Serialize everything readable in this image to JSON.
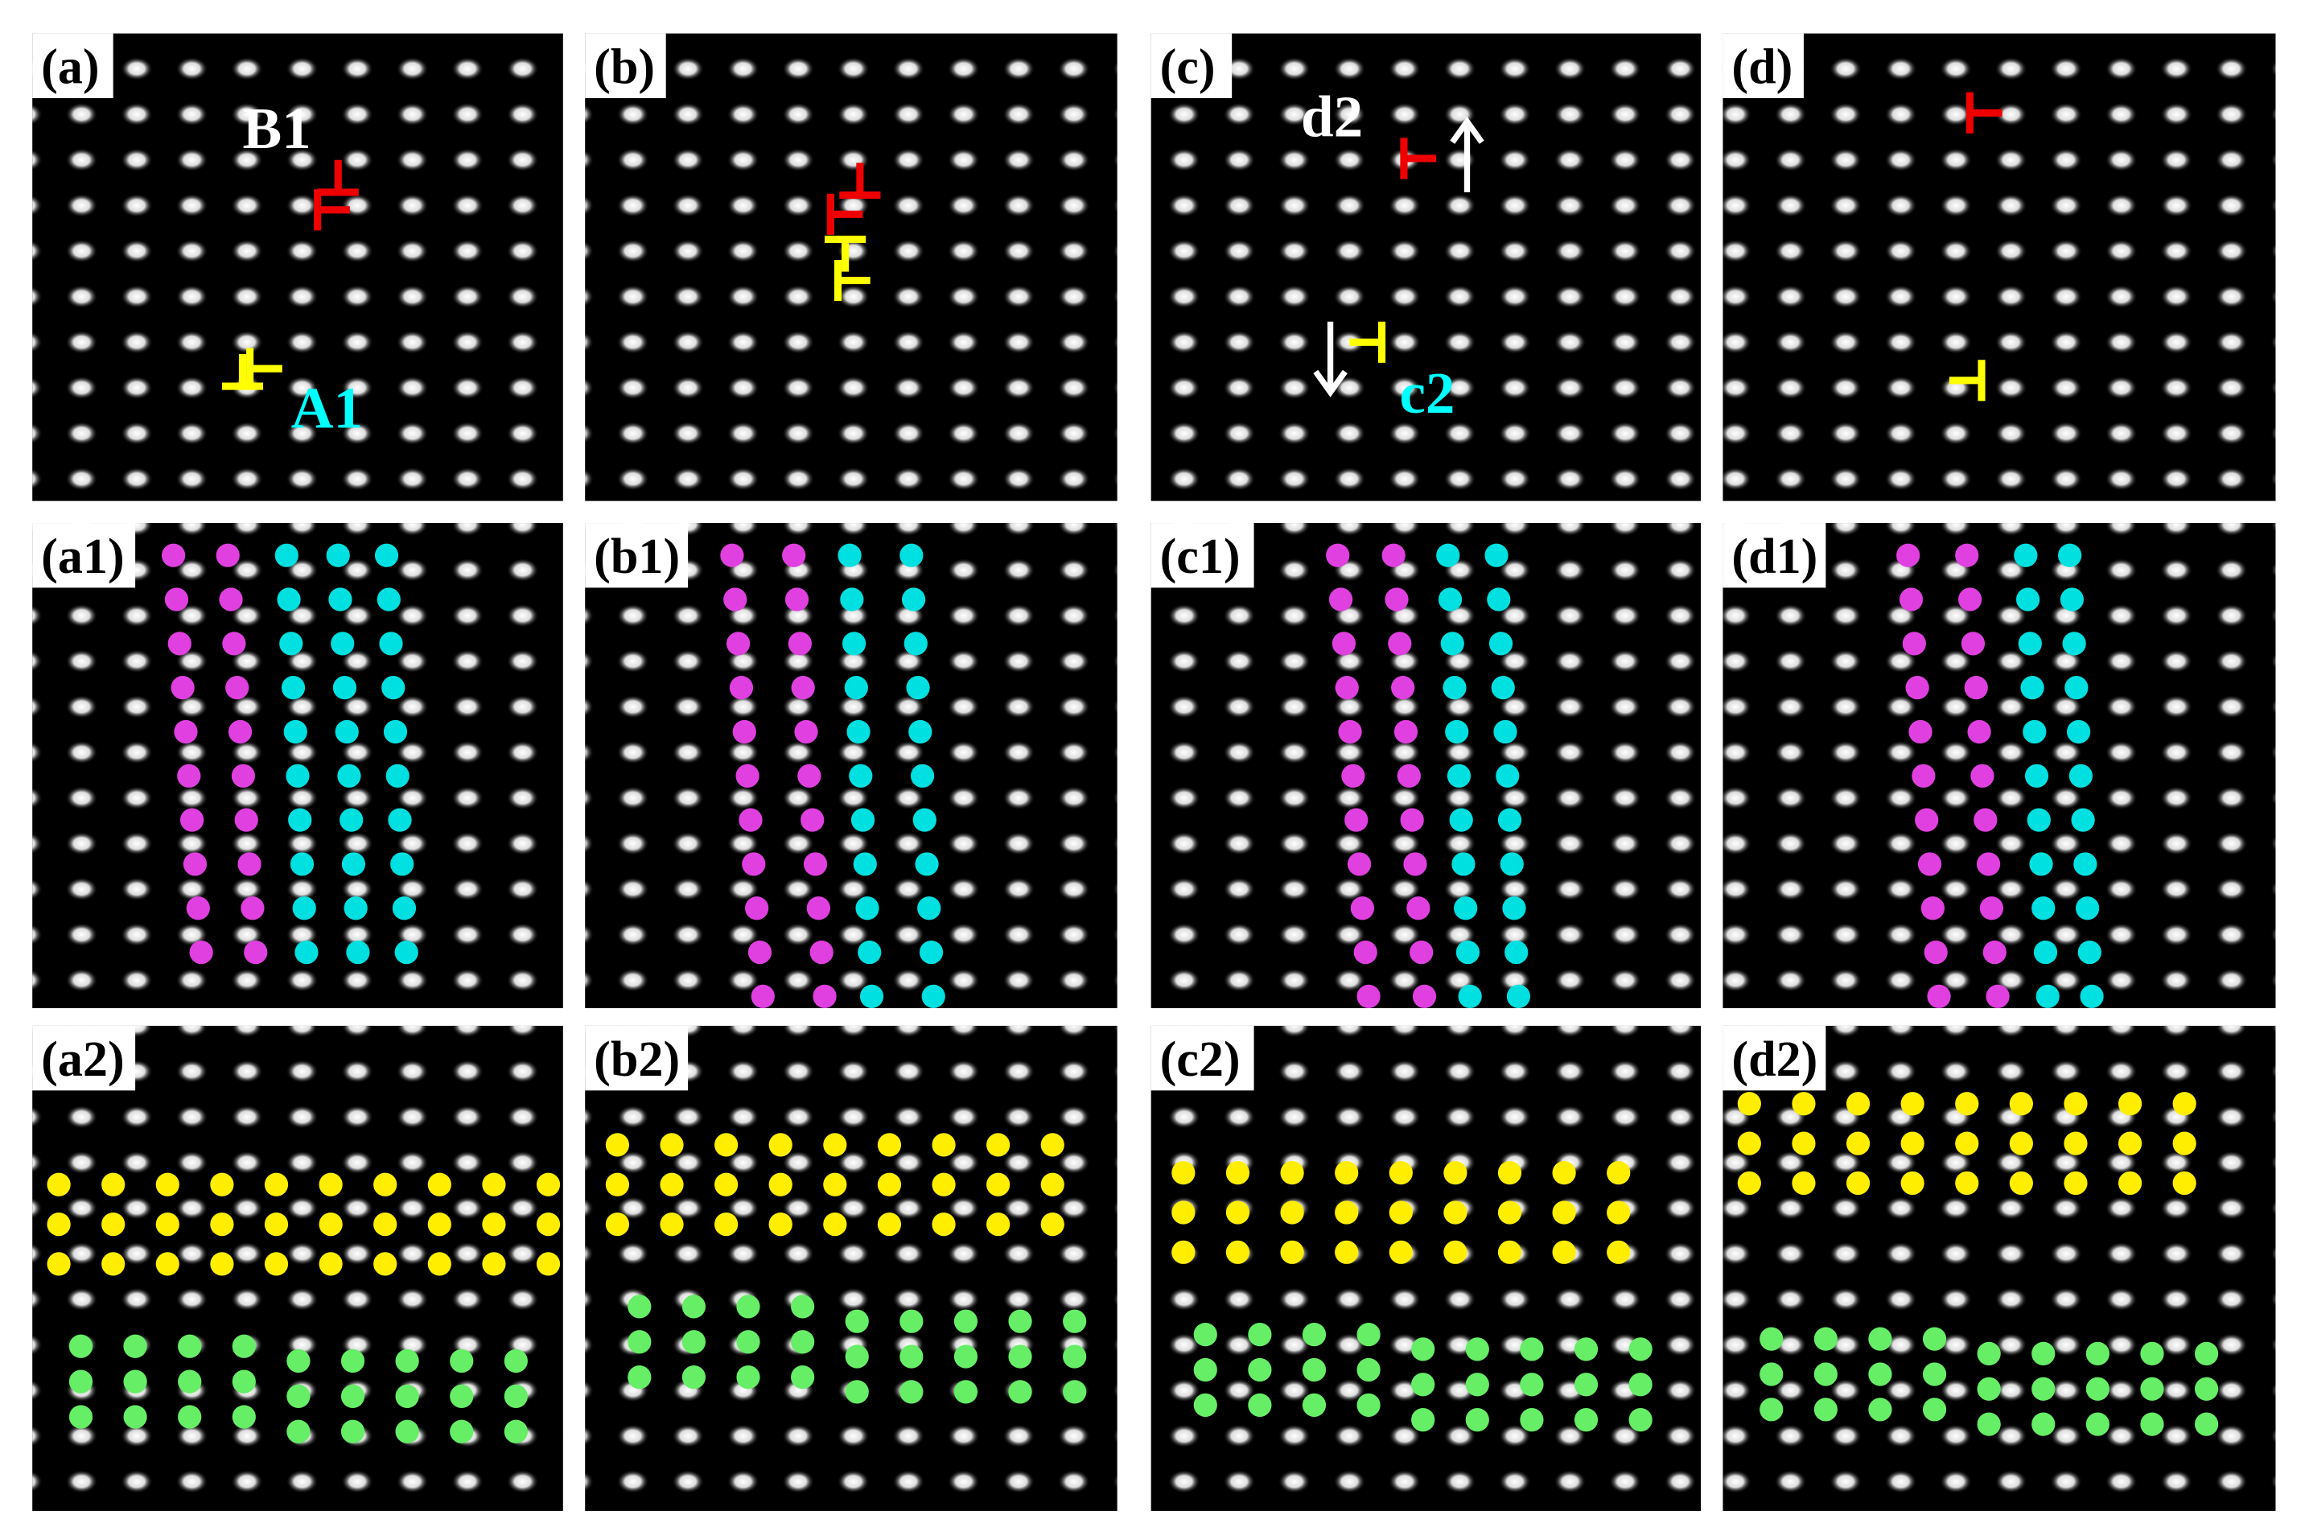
{
  "panels": [
    {
      "label": "(a)",
      "annotations": [
        "B1",
        "A1"
      ]
    },
    {
      "label": "(b)"
    },
    {
      "label": "(c)",
      "annotations": [
        "d2",
        "c2"
      ]
    },
    {
      "label": "(d)"
    },
    {
      "label": "(a1)"
    },
    {
      "label": "(b1)"
    },
    {
      "label": "(c1)"
    },
    {
      "label": "(d1)"
    },
    {
      "label": "(a2)"
    },
    {
      "label": "(b2)"
    },
    {
      "label": "(c2)"
    },
    {
      "label": "(d2)"
    }
  ]
}
